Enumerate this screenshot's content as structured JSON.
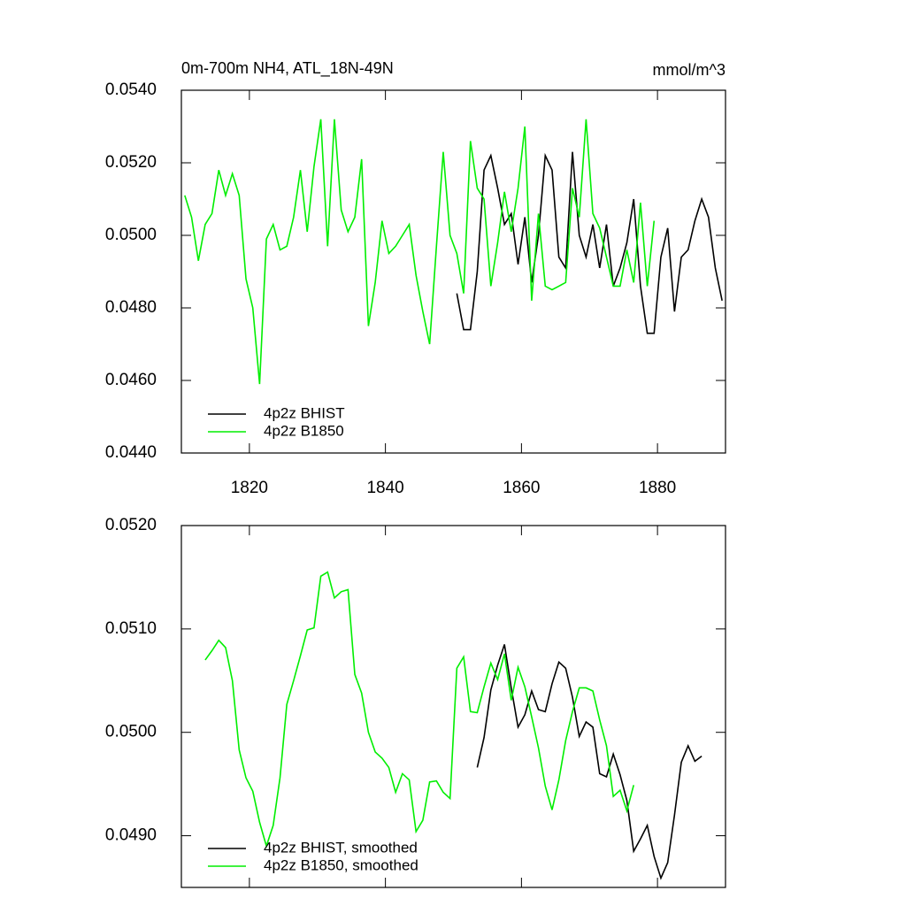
{
  "chart_data": [
    {
      "type": "line",
      "title": "0m-700m NH4, ATL_18N-49N",
      "units": "mmol/m^3",
      "xlim": [
        1810,
        1890
      ],
      "ylim": [
        0.044,
        0.054
      ],
      "xticks": [
        1820,
        1840,
        1860,
        1880
      ],
      "show_xtick_labels": true,
      "yticks": [
        {
          "value": 0.044,
          "label": "0.0440"
        },
        {
          "value": 0.046,
          "label": "0.0460"
        },
        {
          "value": 0.048,
          "label": "0.0480"
        },
        {
          "value": 0.05,
          "label": "0.0500"
        },
        {
          "value": 0.052,
          "label": "0.0520"
        },
        {
          "value": 0.054,
          "label": "0.0540"
        }
      ],
      "legend": "bottom-left",
      "series": [
        {
          "name": "4p2z BHIST",
          "color": "#000000",
          "x": [
            1850.5,
            1851.5,
            1852.5,
            1853.5,
            1854.5,
            1855.5,
            1856.5,
            1857.5,
            1858.5,
            1859.5,
            1860.5,
            1861.5,
            1862.5,
            1863.5,
            1864.5,
            1865.5,
            1866.5,
            1867.5,
            1868.5,
            1869.5,
            1870.5,
            1871.5,
            1872.5,
            1873.5,
            1874.5,
            1875.5,
            1876.5,
            1877.5,
            1878.5,
            1879.5,
            1880.5,
            1881.5,
            1882.5,
            1883.5,
            1884.5,
            1885.5,
            1886.5,
            1887.5,
            1888.5,
            1889.5
          ],
          "values": [
            0.0484,
            0.0474,
            0.0474,
            0.049,
            0.0518,
            0.0522,
            0.0513,
            0.0503,
            0.0506,
            0.0492,
            0.0505,
            0.0487,
            0.05,
            0.0522,
            0.0518,
            0.0494,
            0.0491,
            0.0523,
            0.05,
            0.0494,
            0.0503,
            0.0491,
            0.0503,
            0.0486,
            0.0491,
            0.0498,
            0.051,
            0.0486,
            0.0473,
            0.0473,
            0.0494,
            0.0502,
            0.0479,
            0.0494,
            0.0496,
            0.0504,
            0.051,
            0.0505,
            0.0491,
            0.0482
          ]
        },
        {
          "name": "4p2z B1850",
          "color": "#00ee00",
          "x": [
            1810.5,
            1811.5,
            1812.5,
            1813.5,
            1814.5,
            1815.5,
            1816.5,
            1817.5,
            1818.5,
            1819.5,
            1820.5,
            1821.5,
            1822.5,
            1823.5,
            1824.5,
            1825.5,
            1826.5,
            1827.5,
            1828.5,
            1829.5,
            1830.5,
            1831.5,
            1832.5,
            1833.5,
            1834.5,
            1835.5,
            1836.5,
            1837.5,
            1838.5,
            1839.5,
            1840.5,
            1841.5,
            1842.5,
            1843.5,
            1844.5,
            1845.5,
            1846.5,
            1847.5,
            1848.5,
            1849.5,
            1850.5,
            1851.5,
            1852.5,
            1853.5,
            1854.5,
            1855.5,
            1856.5,
            1857.5,
            1858.5,
            1859.5,
            1860.5,
            1861.5,
            1862.5,
            1863.5,
            1864.5,
            1865.5,
            1866.5,
            1867.5,
            1868.5,
            1869.5,
            1870.5,
            1871.5,
            1872.5,
            1873.5,
            1874.5,
            1875.5,
            1876.5,
            1877.5,
            1878.5,
            1879.5
          ],
          "values": [
            0.0511,
            0.0505,
            0.0493,
            0.0503,
            0.0506,
            0.0518,
            0.0511,
            0.0517,
            0.0511,
            0.0488,
            0.048,
            0.0459,
            0.0499,
            0.0503,
            0.0496,
            0.0497,
            0.0505,
            0.0518,
            0.0501,
            0.0519,
            0.0532,
            0.0497,
            0.0532,
            0.0507,
            0.0501,
            0.0505,
            0.0521,
            0.0475,
            0.0487,
            0.0504,
            0.0495,
            0.0497,
            0.05,
            0.0503,
            0.0489,
            0.0479,
            0.047,
            0.0497,
            0.0523,
            0.05,
            0.0495,
            0.0484,
            0.0526,
            0.0513,
            0.051,
            0.0486,
            0.0498,
            0.0512,
            0.0501,
            0.0513,
            0.053,
            0.0482,
            0.0506,
            0.0486,
            0.0485,
            0.0486,
            0.0487,
            0.0513,
            0.0505,
            0.0532,
            0.0506,
            0.0502,
            0.0494,
            0.0486,
            0.0486,
            0.0496,
            0.0487,
            0.0509,
            0.0486,
            0.0504
          ]
        }
      ]
    },
    {
      "type": "line",
      "xlim": [
        1810,
        1890
      ],
      "ylim": [
        0.0485,
        0.052
      ],
      "xticks": [
        1820,
        1840,
        1860,
        1880
      ],
      "show_xtick_labels": false,
      "yticks": [
        {
          "value": 0.049,
          "label": "0.0490"
        },
        {
          "value": 0.05,
          "label": "0.0500"
        },
        {
          "value": 0.051,
          "label": "0.0510"
        },
        {
          "value": 0.052,
          "label": "0.0520"
        }
      ],
      "legend": "bottom-left",
      "series": [
        {
          "name": "4p2z BHIST, smoothed",
          "color": "#000000",
          "x": [
            1853.5,
            1854.5,
            1855.5,
            1856.5,
            1857.5,
            1858.5,
            1859.5,
            1860.5,
            1861.5,
            1862.5,
            1863.5,
            1864.5,
            1865.5,
            1866.5,
            1867.5,
            1868.5,
            1869.5,
            1870.5,
            1871.5,
            1872.5,
            1873.5,
            1874.5,
            1875.5,
            1876.5,
            1877.5,
            1878.5,
            1879.5,
            1880.5,
            1881.5,
            1882.5,
            1883.5,
            1884.5,
            1885.5,
            1886.5
          ],
          "values": [
            0.04966,
            0.04995,
            0.05041,
            0.05065,
            0.05085,
            0.05043,
            0.05005,
            0.05017,
            0.0504,
            0.05022,
            0.0502,
            0.05047,
            0.05068,
            0.05062,
            0.05034,
            0.04996,
            0.0501,
            0.05005,
            0.0496,
            0.04957,
            0.04979,
            0.04959,
            0.04934,
            0.04885,
            0.04897,
            0.0491,
            0.0488,
            0.04859,
            0.04874,
            0.0492,
            0.04971,
            0.04987,
            0.04972,
            0.04977
          ]
        },
        {
          "name": "4p2z B1850, smoothed",
          "color": "#00ee00",
          "x": [
            1813.5,
            1814.5,
            1815.5,
            1816.5,
            1817.5,
            1818.5,
            1819.5,
            1820.5,
            1821.5,
            1822.5,
            1823.5,
            1824.5,
            1825.5,
            1826.5,
            1827.5,
            1828.5,
            1829.5,
            1830.5,
            1831.5,
            1832.5,
            1833.5,
            1834.5,
            1835.5,
            1836.5,
            1837.5,
            1838.5,
            1839.5,
            1840.5,
            1841.5,
            1842.5,
            1843.5,
            1844.5,
            1845.5,
            1846.5,
            1847.5,
            1848.5,
            1849.5,
            1850.5,
            1851.5,
            1852.5,
            1853.5,
            1854.5,
            1855.5,
            1856.5,
            1857.5,
            1858.5,
            1859.5,
            1860.5,
            1861.5,
            1862.5,
            1863.5,
            1864.5,
            1865.5,
            1866.5,
            1867.5,
            1868.5,
            1869.5,
            1870.5,
            1871.5,
            1872.5,
            1873.5,
            1874.5,
            1875.5,
            1876.5
          ],
          "values": [
            0.0507,
            0.05079,
            0.05089,
            0.05082,
            0.0505,
            0.04983,
            0.04956,
            0.04943,
            0.04913,
            0.0489,
            0.0491,
            0.04956,
            0.05027,
            0.0505,
            0.05074,
            0.05099,
            0.05101,
            0.05151,
            0.05155,
            0.0513,
            0.05136,
            0.05138,
            0.05056,
            0.05038,
            0.05,
            0.04981,
            0.04975,
            0.04966,
            0.04942,
            0.0496,
            0.04954,
            0.04904,
            0.04915,
            0.04952,
            0.04953,
            0.04942,
            0.04936,
            0.05062,
            0.05073,
            0.0502,
            0.05019,
            0.05044,
            0.05067,
            0.05051,
            0.05076,
            0.05031,
            0.05063,
            0.05044,
            0.05015,
            0.04985,
            0.04948,
            0.04925,
            0.04954,
            0.04992,
            0.0502,
            0.05043,
            0.05043,
            0.0504,
            0.05012,
            0.04987,
            0.04938,
            0.04944,
            0.04924,
            0.04949
          ]
        }
      ]
    }
  ]
}
